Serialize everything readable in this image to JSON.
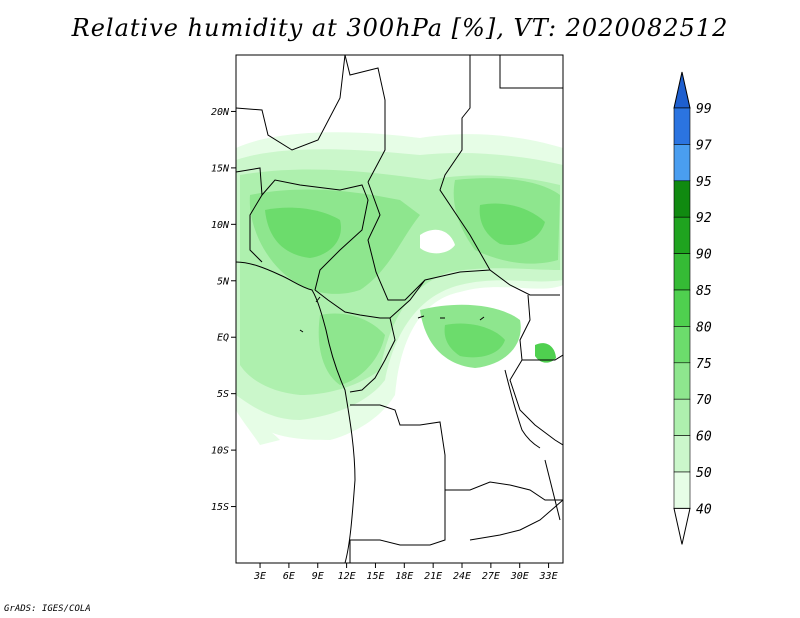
{
  "title": "Relative humidity at 300hPa [%], VT: 2020082512",
  "credit": "GrADS: IGES/COLA",
  "map": {
    "lat_labels": [
      "20N",
      "15N",
      "10N",
      "5N",
      "EQ",
      "5S",
      "10S",
      "15S"
    ],
    "lat_values": [
      20,
      15,
      10,
      5,
      0,
      -5,
      -10,
      -15
    ],
    "lon_labels": [
      "3E",
      "6E",
      "9E",
      "12E",
      "15E",
      "18E",
      "21E",
      "24E",
      "27E",
      "30E",
      "33E"
    ],
    "lon_values": [
      3,
      6,
      9,
      12,
      15,
      18,
      21,
      24,
      27,
      30,
      33
    ],
    "lon_range": [
      0.5,
      34.5
    ],
    "lat_range": [
      -20,
      25
    ]
  },
  "colorbar": {
    "levels": [
      "99",
      "97",
      "95",
      "92",
      "90",
      "85",
      "80",
      "75",
      "70",
      "60",
      "50",
      "40"
    ],
    "colors": [
      "#1e5fcf",
      "#2b74e0",
      "#4a9ef0",
      "#108a10",
      "#1fa31f",
      "#35bb35",
      "#4fd04f",
      "#6cdc6c",
      "#8ee68e",
      "#aef0ae",
      "#cbf7cb",
      "#e6fde6"
    ]
  }
}
